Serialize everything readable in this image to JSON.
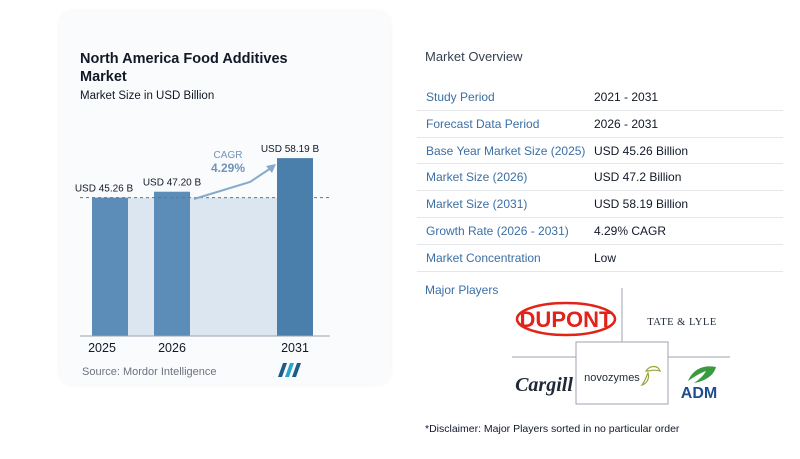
{
  "chart": {
    "title": "North America Food Additives Market",
    "subtitle": "Market Size in USD Billion",
    "cagr_label": "CAGR",
    "cagr_value": "4.29%",
    "source": "Source:  Mordor Intelligence"
  },
  "chart_data": {
    "type": "bar",
    "categories": [
      "2025",
      "2026",
      "2031"
    ],
    "values": [
      45.26,
      47.2,
      58.19
    ],
    "data_labels": [
      "USD 45.26 B",
      "USD 47.20 B",
      "USD 58.19 B"
    ],
    "title": "North America Food Additives Market",
    "subtitle": "Market Size in USD Billion",
    "xlabel": "",
    "ylabel": "",
    "ylim": [
      0,
      60
    ],
    "grid": false,
    "colors": {
      "bar": "#5b8db8",
      "bar_last": "#4a7eab",
      "band": "#dbe6f0",
      "reference_line": "#6b7280",
      "cagr_text": "#6f95bb",
      "cagr_arrow": "#86aacb"
    },
    "annotations": [
      {
        "text": "CAGR 4.29%",
        "from": "2026",
        "to": "2031"
      }
    ]
  },
  "overview": {
    "title": "Market Overview",
    "rows": [
      {
        "label": "Study Period",
        "value": "2021 - 2031"
      },
      {
        "label": "Forecast Data Period",
        "value": "2026 - 2031"
      },
      {
        "label": "Base Year Market Size (2025)",
        "value": "USD 45.26 Billion"
      },
      {
        "label": "Market Size (2026)",
        "value": "USD 47.2 Billion"
      },
      {
        "label": "Market Size (2031)",
        "value": "USD 58.19 Billion"
      },
      {
        "label": "Growth Rate (2026 - 2031)",
        "value": "4.29% CAGR"
      },
      {
        "label": "Market Concentration",
        "value": "Low"
      }
    ]
  },
  "players": {
    "title": "Major Players",
    "logos": [
      {
        "name": "DUPONT",
        "icon": "dupont-logo",
        "color": "#e2231a"
      },
      {
        "name": "TATE & LYLE",
        "icon": "tate-lyle-logo",
        "color": "#1f2937"
      },
      {
        "name": "Cargill",
        "icon": "cargill-logo",
        "color": "#1f2937"
      },
      {
        "name": "novozymes",
        "icon": "novozymes-logo",
        "color": "#1f2937"
      },
      {
        "name": "ADM",
        "icon": "adm-logo",
        "color": "#3a9a3f"
      }
    ]
  },
  "disclaimer": "*Disclaimer: Major Players sorted in no particular order"
}
